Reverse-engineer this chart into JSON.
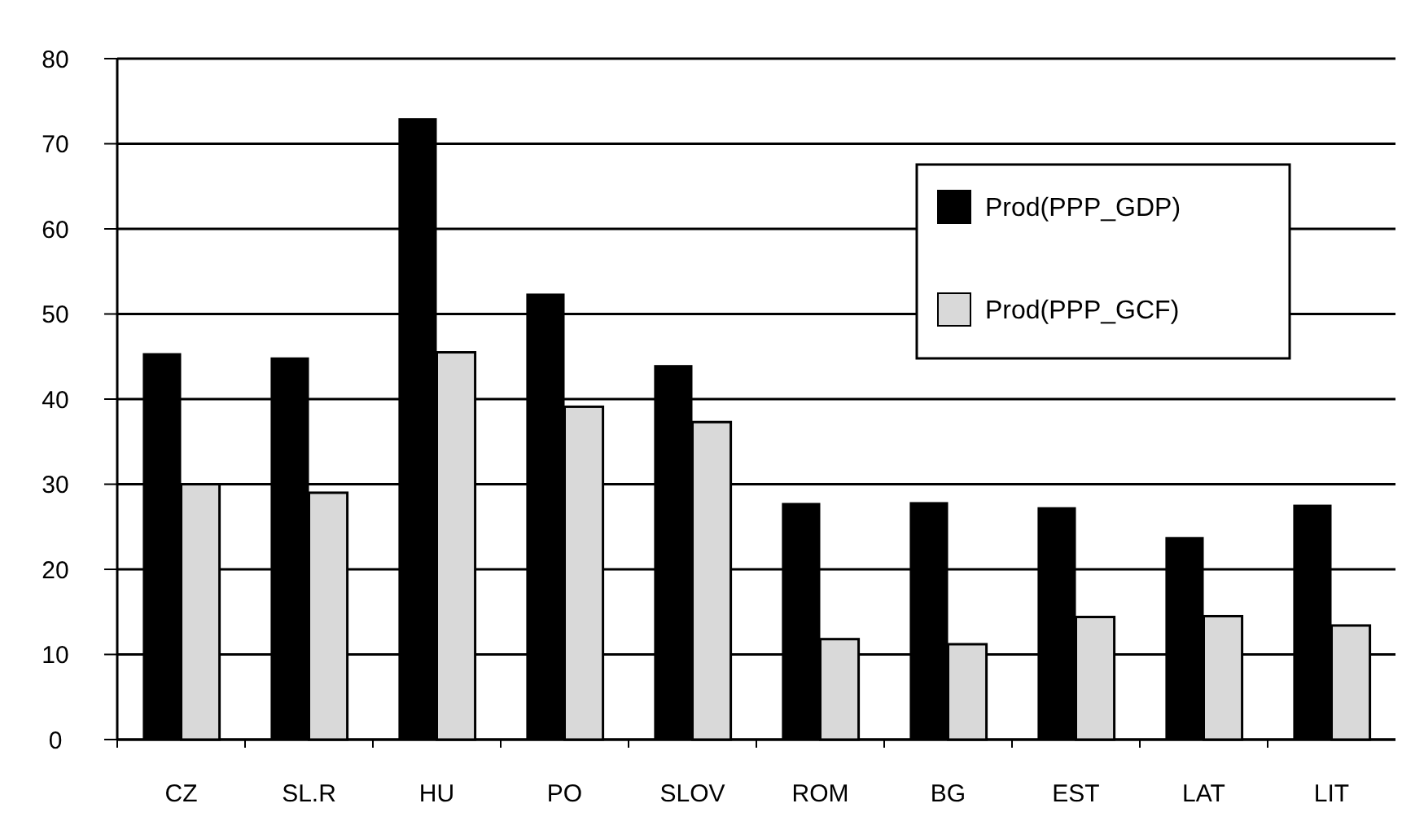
{
  "chart_data": {
    "type": "bar",
    "categories": [
      "CZ",
      "SL.R",
      "HU",
      "PO",
      "SLOV",
      "ROM",
      "BG",
      "EST",
      "LAT",
      "LIT"
    ],
    "series": [
      {
        "name": "Prod(PPP_GDP)",
        "color": "#000000",
        "values": [
          45.4,
          44.9,
          73,
          52.4,
          44,
          27.8,
          27.9,
          27.3,
          23.8,
          27.6
        ]
      },
      {
        "name": "Prod(PPP_GCF)",
        "color": "#d9d9d9",
        "values": [
          30,
          29,
          45.5,
          39.1,
          37.3,
          11.8,
          11.2,
          14.4,
          14.5,
          13.4
        ]
      }
    ],
    "ylim": [
      0,
      80
    ],
    "yticks": [
      0,
      10,
      20,
      30,
      40,
      50,
      60,
      70,
      80
    ],
    "grid": "y",
    "legend": "top right"
  }
}
